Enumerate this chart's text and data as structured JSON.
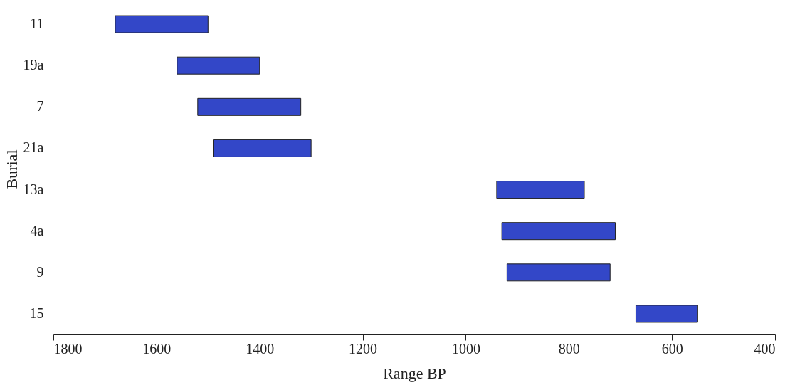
{
  "chart_data": {
    "type": "bar",
    "orientation": "horizontal",
    "xlabel": "Range BP",
    "ylabel": "Burial",
    "categories": [
      "11",
      "19a",
      "7",
      "21a",
      "13a",
      "4a",
      "9",
      "15"
    ],
    "base": [
      1500,
      1400,
      1320,
      1300,
      770,
      710,
      720,
      550
    ],
    "values": [
      180,
      160,
      200,
      190,
      170,
      220,
      200,
      120
    ],
    "color": "#3347c8",
    "xlim": [
      1800,
      400
    ],
    "xticks": [
      1800,
      1600,
      1400,
      1200,
      1000,
      800,
      600,
      400
    ],
    "grid": false
  }
}
